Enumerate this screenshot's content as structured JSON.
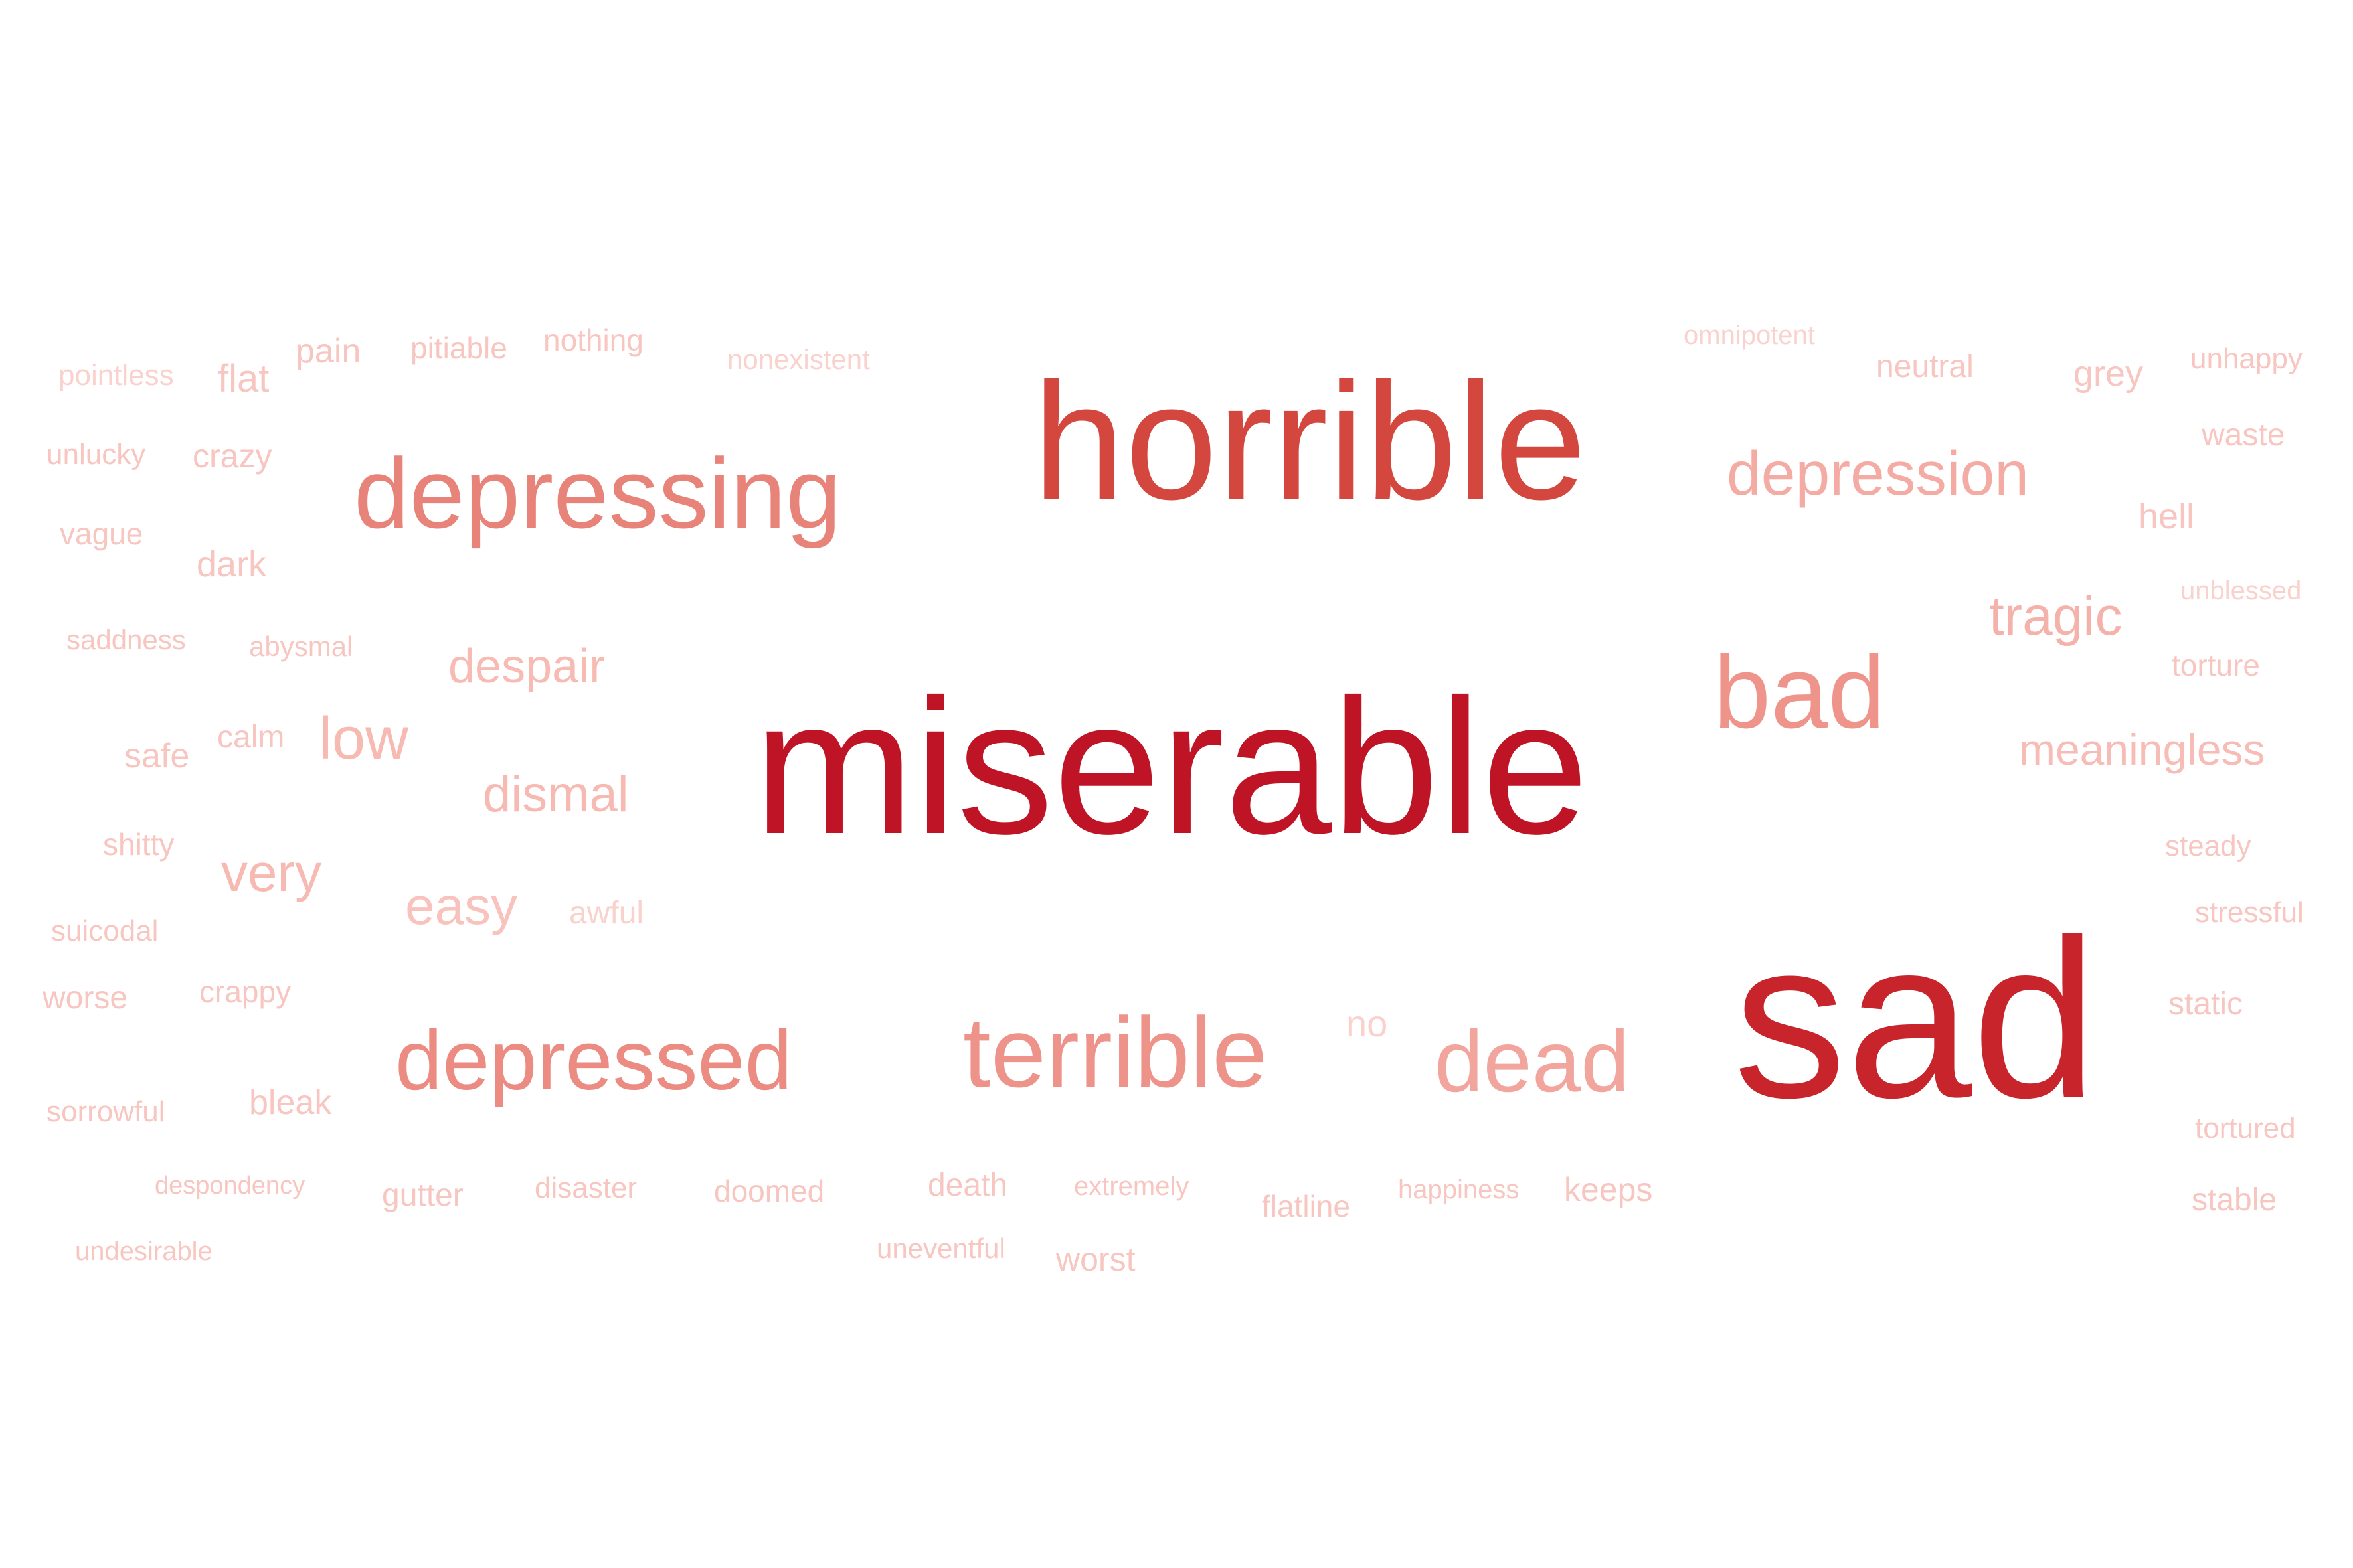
{
  "words": [
    {
      "text": "miserable",
      "weight": 1.0,
      "color": "#bf1425"
    },
    {
      "text": "sad",
      "weight": 0.93,
      "color": "#c7242c"
    },
    {
      "text": "horrible",
      "weight": 0.8,
      "color": "#d4473f"
    },
    {
      "text": "depressing",
      "weight": 0.58,
      "color": "#e8837a"
    },
    {
      "text": "terrible",
      "weight": 0.56,
      "color": "#ee938a"
    },
    {
      "text": "depressed",
      "weight": 0.54,
      "color": "#ec8b82"
    },
    {
      "text": "bad",
      "weight": 0.53,
      "color": "#ef948b"
    },
    {
      "text": "dead",
      "weight": 0.5,
      "color": "#f2a59d"
    },
    {
      "text": "depression",
      "weight": 0.4,
      "color": "#f4aba3"
    },
    {
      "text": "tragic",
      "weight": 0.31,
      "color": "#f5b2aa"
    },
    {
      "text": "despair",
      "weight": 0.29,
      "color": "#f7bbb4"
    },
    {
      "text": "dismal",
      "weight": 0.3,
      "color": "#f7bab3"
    },
    {
      "text": "low",
      "weight": 0.32,
      "color": "#f7bab3"
    },
    {
      "text": "very",
      "weight": 0.3,
      "color": "#f7bab3"
    },
    {
      "text": "easy",
      "weight": 0.3,
      "color": "#f8c3bd"
    },
    {
      "text": "meaningless",
      "weight": 0.26,
      "color": "#f7bcb5"
    },
    {
      "text": "pointless",
      "weight": 0.16,
      "color": "#fad2cd"
    },
    {
      "text": "flat",
      "weight": 0.2,
      "color": "#f8c6c0"
    },
    {
      "text": "pain",
      "weight": 0.18,
      "color": "#f8c6c0"
    },
    {
      "text": "pitiable",
      "weight": 0.16,
      "color": "#f8c6c0"
    },
    {
      "text": "nothing",
      "weight": 0.16,
      "color": "#f8c6c0"
    },
    {
      "text": "nonexistent",
      "weight": 0.15,
      "color": "#fad2cd"
    },
    {
      "text": "omnipotent",
      "weight": 0.15,
      "color": "#fad2cd"
    },
    {
      "text": "neutral",
      "weight": 0.17,
      "color": "#f8c6c0"
    },
    {
      "text": "grey",
      "weight": 0.19,
      "color": "#f8c6c0"
    },
    {
      "text": "unhappy",
      "weight": 0.16,
      "color": "#f8c6c0"
    },
    {
      "text": "waste",
      "weight": 0.17,
      "color": "#f8c6c0"
    },
    {
      "text": "unlucky",
      "weight": 0.16,
      "color": "#f8c6c0"
    },
    {
      "text": "crazy",
      "weight": 0.18,
      "color": "#f8c6c0"
    },
    {
      "text": "vague",
      "weight": 0.16,
      "color": "#f8c6c0"
    },
    {
      "text": "dark",
      "weight": 0.19,
      "color": "#f8c6c0"
    },
    {
      "text": "hell",
      "weight": 0.19,
      "color": "#f8c6c0"
    },
    {
      "text": "unblessed",
      "weight": 0.15,
      "color": "#fad2cd"
    },
    {
      "text": "saddness",
      "weight": 0.15,
      "color": "#f8c6c0"
    },
    {
      "text": "abysmal",
      "weight": 0.15,
      "color": "#f8c6c0"
    },
    {
      "text": "torture",
      "weight": 0.16,
      "color": "#f8c6c0"
    },
    {
      "text": "safe",
      "weight": 0.18,
      "color": "#f8c6c0"
    },
    {
      "text": "calm",
      "weight": 0.17,
      "color": "#f8c6c0"
    },
    {
      "text": "shitty",
      "weight": 0.16,
      "color": "#f8c6c0"
    },
    {
      "text": "steady",
      "weight": 0.16,
      "color": "#f8c6c0"
    },
    {
      "text": "suicodal",
      "weight": 0.16,
      "color": "#f8c6c0"
    },
    {
      "text": "awful",
      "weight": 0.17,
      "color": "#fad2cd"
    },
    {
      "text": "stressful",
      "weight": 0.16,
      "color": "#f8c6c0"
    },
    {
      "text": "worse",
      "weight": 0.17,
      "color": "#f8c6c0"
    },
    {
      "text": "crappy",
      "weight": 0.16,
      "color": "#f8c6c0"
    },
    {
      "text": "no",
      "weight": 0.19,
      "color": "#fad2cd"
    },
    {
      "text": "static",
      "weight": 0.17,
      "color": "#f8c6c0"
    },
    {
      "text": "sorrowful",
      "weight": 0.16,
      "color": "#f8c6c0"
    },
    {
      "text": "bleak",
      "weight": 0.18,
      "color": "#f8c6c0"
    },
    {
      "text": "tortured",
      "weight": 0.16,
      "color": "#f8c6c0"
    },
    {
      "text": "despondency",
      "weight": 0.14,
      "color": "#f8c6c0"
    },
    {
      "text": "gutter",
      "weight": 0.17,
      "color": "#f8c6c0"
    },
    {
      "text": "disaster",
      "weight": 0.16,
      "color": "#f8c6c0"
    },
    {
      "text": "doomed",
      "weight": 0.17,
      "color": "#f8c6c0"
    },
    {
      "text": "death",
      "weight": 0.17,
      "color": "#f8c6c0"
    },
    {
      "text": "extremely",
      "weight": 0.15,
      "color": "#f8c6c0"
    },
    {
      "text": "flatline",
      "weight": 0.16,
      "color": "#f8c6c0"
    },
    {
      "text": "happiness",
      "weight": 0.15,
      "color": "#f8c6c0"
    },
    {
      "text": "keeps",
      "weight": 0.17,
      "color": "#f8c6c0"
    },
    {
      "text": "stable",
      "weight": 0.17,
      "color": "#f8c6c0"
    },
    {
      "text": "undesirable",
      "weight": 0.15,
      "color": "#f8c6c0"
    },
    {
      "text": "uneventful",
      "weight": 0.15,
      "color": "#f8c6c0"
    },
    {
      "text": "worst",
      "weight": 0.17,
      "color": "#f8c6c0"
    }
  ]
}
